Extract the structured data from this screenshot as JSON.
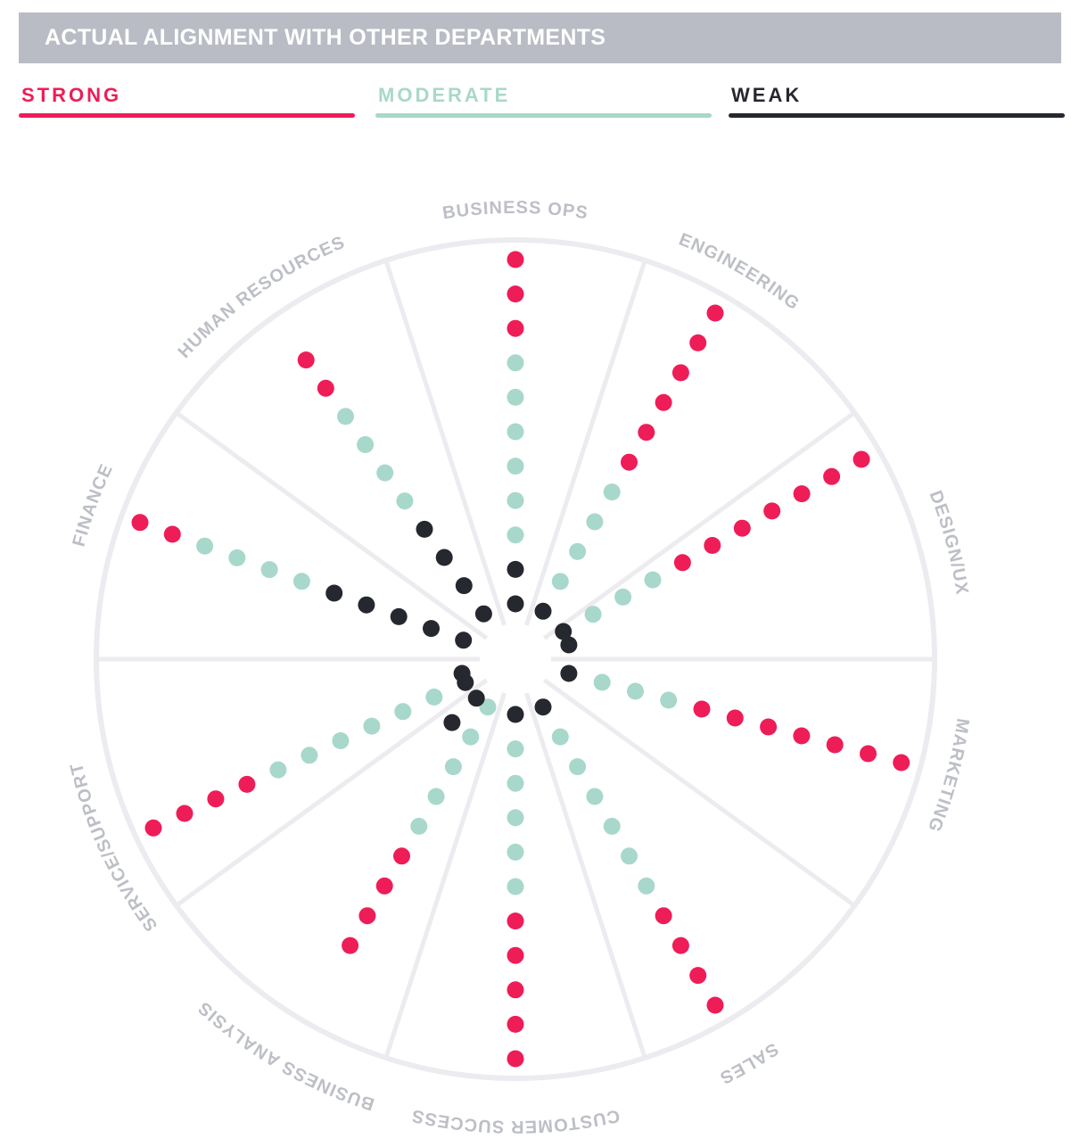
{
  "title": "ACTUAL ALIGNMENT WITH OTHER DEPARTMENTS",
  "legend": [
    {
      "label": "STRONG",
      "color": "#ee1d57"
    },
    {
      "label": "MODERATE",
      "color": "#a8d8cb"
    },
    {
      "label": "WEAK",
      "color": "#262830"
    }
  ],
  "colors": {
    "strong": "#ee1d57",
    "moderate": "#a8d8cb",
    "weak": "#262830",
    "wheel": "#ecebef",
    "department_label": "#bdbfc6",
    "title_background": "#b9bcc4"
  },
  "chart_data": {
    "type": "radial-dot",
    "department_labels": [
      "BUSINESS OPS",
      "ENGINEERING",
      "DESIGN/UX",
      "MARKETING",
      "SALES",
      "CUSTOMER SUCCESS",
      "BUSINESS ANALYSIS",
      "SERVICE/SUPPORT",
      "FINANCE",
      "HUMAN RESOURCES"
    ],
    "spokes": [
      {
        "angle": 0,
        "weak": 2,
        "moderate": 6,
        "strong": 3,
        "label": "BUSINESS OPS"
      },
      {
        "angle": 30,
        "weak": 1,
        "moderate": 4,
        "strong": 6,
        "label": "ENGINEERING"
      },
      {
        "angle": 60,
        "weak": 1,
        "moderate": 3,
        "strong": 7
      },
      {
        "angle": 75,
        "weak": 1,
        "moderate": 0,
        "strong": 0,
        "label": "DESIGN/UX"
      },
      {
        "angle": 105,
        "weak": 1,
        "moderate": 3,
        "strong": 7,
        "label": "MARKETING"
      },
      {
        "angle": 150,
        "weak": 1,
        "moderate": 6,
        "strong": 4,
        "label": "SALES"
      },
      {
        "angle": 180,
        "weak": 1,
        "moderate": 5,
        "strong": 5,
        "label": "CUSTOMER SUCCESS"
      },
      {
        "angle": 210,
        "weak": 0,
        "moderate": 5,
        "strong": 4,
        "label": "BUSINESS ANALYSIS"
      },
      {
        "angle": 225,
        "weak": 2,
        "moderate": 0,
        "strong": 0
      },
      {
        "angle": 245,
        "weak": 1,
        "moderate": 6,
        "strong": 4,
        "label": "SERVICE/SUPPORT"
      },
      {
        "angle": 255,
        "weak": 1,
        "moderate": 0,
        "strong": 0
      },
      {
        "angle": 290,
        "weak": 5,
        "moderate": 4,
        "strong": 2,
        "label": "FINANCE"
      },
      {
        "angle": 325,
        "weak": 4,
        "moderate": 4,
        "strong": 2,
        "label": "HUMAN RESOURCES"
      }
    ]
  }
}
